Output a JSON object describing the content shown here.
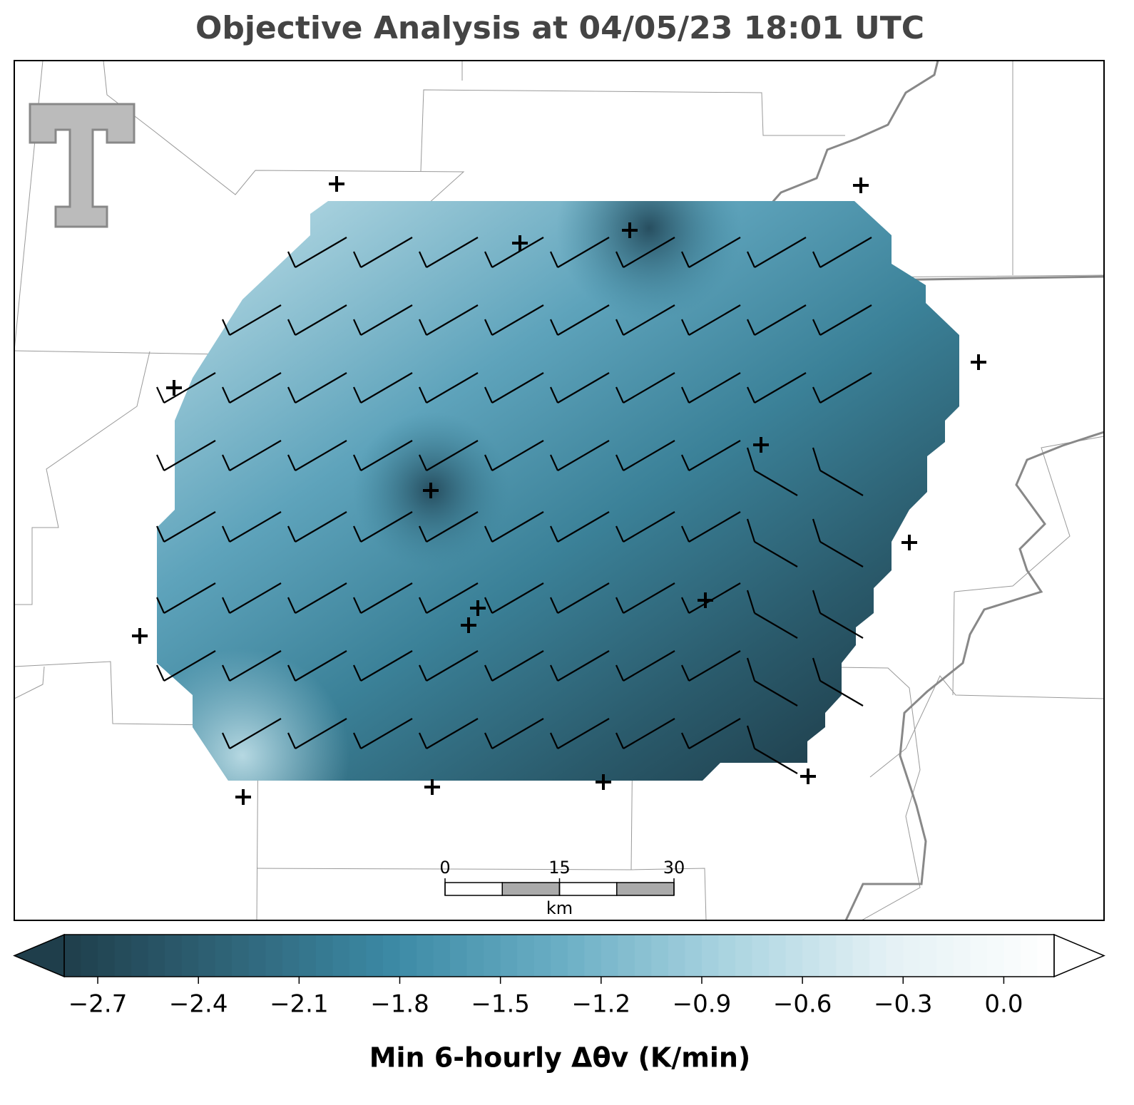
{
  "chart_data": {
    "type": "map",
    "title": "Objective Analysis at 04/05/23 18:01 UTC",
    "colorbar": {
      "label": "Min 6-hourly Δθv (K/min)",
      "lim": [
        -2.8,
        0.15
      ],
      "ticks": [
        {
          "value": -2.7,
          "label": "−2.7"
        },
        {
          "value": -2.4,
          "label": "−2.4"
        },
        {
          "value": -2.1,
          "label": "−2.1"
        },
        {
          "value": -1.8,
          "label": "−1.8"
        },
        {
          "value": -1.5,
          "label": "−1.5"
        },
        {
          "value": -1.2,
          "label": "−1.2"
        },
        {
          "value": -0.9,
          "label": "−0.9"
        },
        {
          "value": -0.6,
          "label": "−0.6"
        },
        {
          "value": -0.3,
          "label": "−0.3"
        },
        {
          "value": 0,
          "label": "0.0"
        }
      ],
      "colormap": [
        "#1f3e4b",
        "#2f6478",
        "#3c8aa5",
        "#6aaec4",
        "#a9d3e0",
        "#e4f1f5",
        "#ffffff"
      ]
    },
    "scale_bar": {
      "ticks": [
        0,
        15,
        30
      ],
      "unit": "km"
    }
  }
}
